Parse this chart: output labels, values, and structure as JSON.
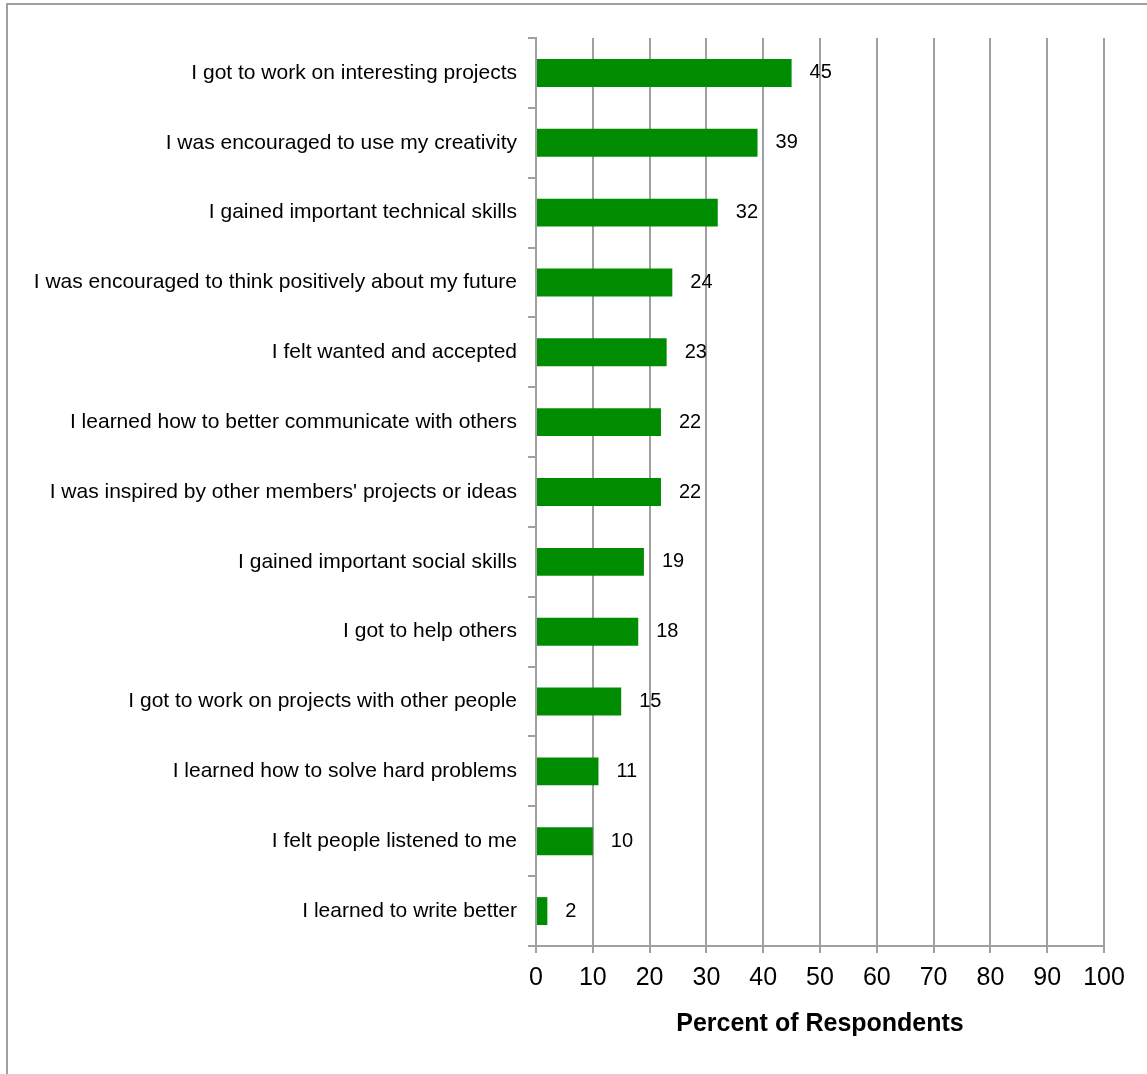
{
  "chart_data": {
    "type": "bar",
    "orientation": "horizontal",
    "categories": [
      "I got to work on interesting projects",
      "I was encouraged to use my creativity",
      "I gained important technical skills",
      "I was encouraged to think positively about my future",
      "I felt wanted and accepted",
      "I learned how to better communicate with others",
      "I was inspired by other members' projects or ideas",
      "I gained important social skills",
      "I got to help others",
      "I got to work on projects with other people",
      "I learned how to solve hard problems",
      "I felt people listened to me",
      "I learned to write better"
    ],
    "values": [
      45,
      39,
      32,
      24,
      23,
      22,
      22,
      19,
      18,
      15,
      11,
      10,
      2
    ],
    "color": "#008c00",
    "xlim": [
      0,
      100
    ],
    "xticks": [
      0,
      10,
      20,
      30,
      40,
      50,
      60,
      70,
      80,
      90,
      100
    ],
    "xlabel": "Percent of Respondents",
    "data_labels": true,
    "grid": "x"
  }
}
